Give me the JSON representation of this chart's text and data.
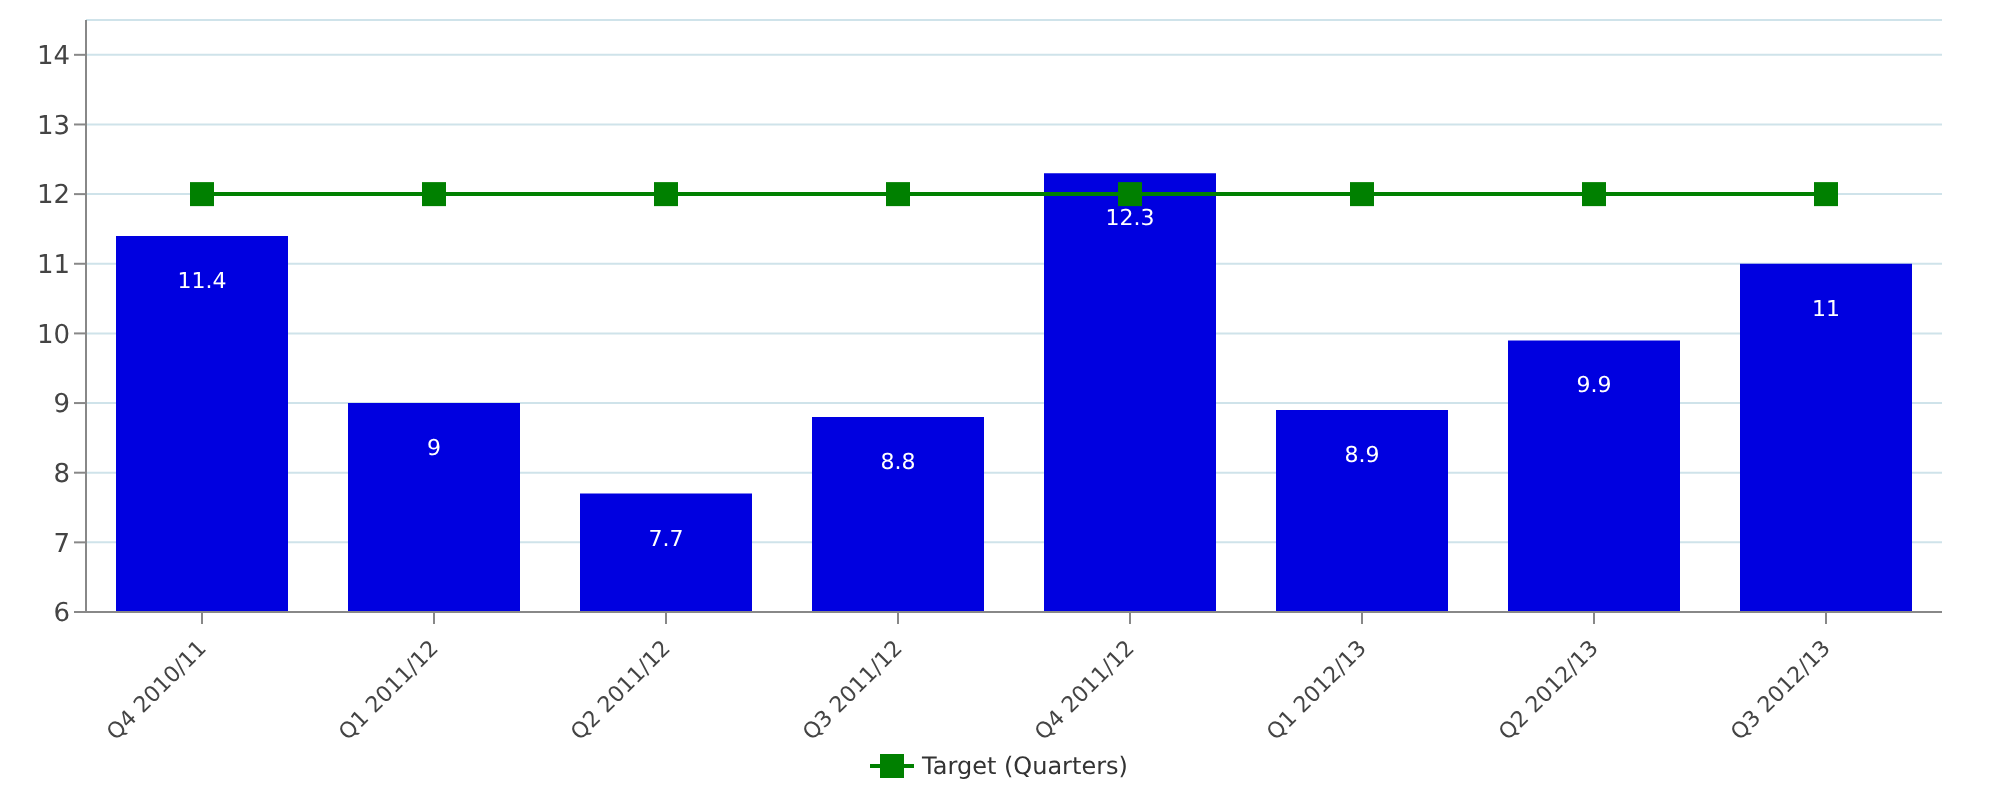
{
  "chart_data": {
    "type": "bar",
    "categories": [
      "Q4 2010/11",
      "Q1 2011/12",
      "Q2 2011/12",
      "Q3 2011/12",
      "Q4 2011/12",
      "Q1 2012/13",
      "Q2 2012/13",
      "Q3 2012/13"
    ],
    "series": [
      {
        "color": "#0000e0",
        "values": [
          11.4,
          9,
          7.7,
          8.8,
          12.3,
          8.9,
          9.9,
          11
        ],
        "value_labels": [
          "11.4",
          "9",
          "7.7",
          "8.8",
          "12.3",
          "8.9",
          "9.9",
          "11"
        ]
      },
      {
        "type": "line",
        "name": "Target (Quarters)",
        "color": "#008000",
        "values": [
          12,
          12,
          12,
          12,
          12,
          12,
          12,
          12
        ]
      }
    ],
    "ylim": [
      6,
      14.5
    ],
    "yticks": [
      6,
      7,
      8,
      9,
      10,
      11,
      12,
      13,
      14
    ],
    "grid": "y",
    "legend": "bottom",
    "marker": "square"
  }
}
